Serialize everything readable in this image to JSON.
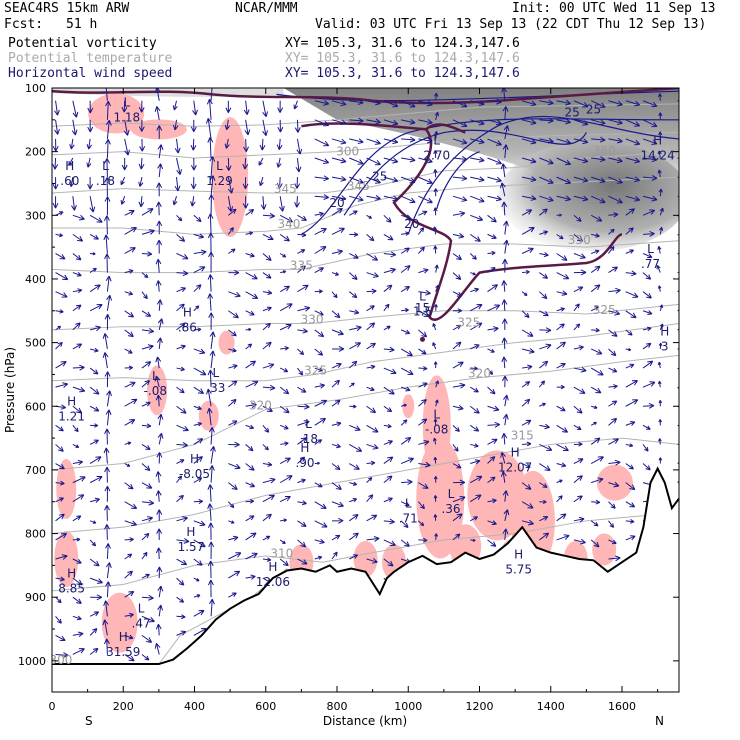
{
  "header": {
    "model": "SEAC4RS 15km ARW",
    "org": "NCAR/MMM",
    "init": "Init: 00 UTC Wed 11 Sep 13",
    "fcst_label": "Fcst:",
    "fcst_value": "51 h",
    "valid": "Valid: 03 UTC Fri 13 Sep 13 (22 CDT Thu 12 Sep 13)",
    "fields": [
      {
        "name": "Potential vorticity",
        "xy": "XY= 105.3, 31.6 to 124.3,147.6",
        "color": "#000000"
      },
      {
        "name": "Potential temperature",
        "xy": "XY= 105.3, 31.6 to 124.3,147.6",
        "color": "#aaaaaa"
      },
      {
        "name": "Horizontal wind speed",
        "xy": "XY= 105.3, 31.6 to 124.3,147.6",
        "color": "#1a1a6e"
      }
    ]
  },
  "chart_data": {
    "type": "cross-section",
    "xlabel": "Distance (km)",
    "ylabel": "Pressure (hPa)",
    "xlim": [
      0,
      1760
    ],
    "ylim": [
      100,
      1050
    ],
    "x_ticks": [
      "0",
      "200",
      "400",
      "600",
      "800",
      "1000",
      "1200",
      "1400",
      "1600"
    ],
    "y_ticks": [
      "100",
      "200",
      "300",
      "400",
      "500",
      "600",
      "700",
      "800",
      "900",
      "1000"
    ],
    "left_end_label": "S",
    "right_end_label": "N",
    "terrain_pressure_hPa": [
      [
        0,
        1005
      ],
      [
        60,
        1005
      ],
      [
        140,
        1005
      ],
      [
        220,
        1005
      ],
      [
        300,
        1005
      ],
      [
        340,
        998
      ],
      [
        380,
        980
      ],
      [
        420,
        960
      ],
      [
        460,
        935
      ],
      [
        500,
        918
      ],
      [
        540,
        905
      ],
      [
        580,
        895
      ],
      [
        620,
        870
      ],
      [
        660,
        858
      ],
      [
        700,
        855
      ],
      [
        740,
        860
      ],
      [
        780,
        850
      ],
      [
        800,
        860
      ],
      [
        840,
        855
      ],
      [
        880,
        860
      ],
      [
        920,
        895
      ],
      [
        940,
        870
      ],
      [
        960,
        860
      ],
      [
        1000,
        845
      ],
      [
        1040,
        835
      ],
      [
        1080,
        848
      ],
      [
        1120,
        845
      ],
      [
        1160,
        830
      ],
      [
        1200,
        840
      ],
      [
        1240,
        833
      ],
      [
        1280,
        815
      ],
      [
        1320,
        790
      ],
      [
        1360,
        822
      ],
      [
        1400,
        830
      ],
      [
        1440,
        835
      ],
      [
        1480,
        840
      ],
      [
        1520,
        842
      ],
      [
        1560,
        860
      ],
      [
        1600,
        845
      ],
      [
        1640,
        830
      ],
      [
        1660,
        790
      ],
      [
        1680,
        720
      ],
      [
        1700,
        698
      ],
      [
        1720,
        720
      ],
      [
        1740,
        760
      ],
      [
        1760,
        745
      ]
    ],
    "theta_contours_K": [
      {
        "label": "300",
        "label_x": 25,
        "label_p": 1005
      },
      {
        "label": "310",
        "label_x": 645,
        "label_p": 838
      },
      {
        "label": "315",
        "label_x": 1320,
        "label_p": 652
      },
      {
        "label": "320",
        "label_x": 585,
        "label_p": 605
      },
      {
        "label": "320",
        "label_x": 1200,
        "label_p": 555
      },
      {
        "label": "325",
        "label_x": 740,
        "label_p": 550
      },
      {
        "label": "325",
        "label_x": 1170,
        "label_p": 475
      },
      {
        "label": "325",
        "label_x": 1550,
        "label_p": 455
      },
      {
        "label": "330",
        "label_x": 730,
        "label_p": 470
      },
      {
        "label": "335",
        "label_x": 700,
        "label_p": 385
      },
      {
        "label": "340",
        "label_x": 665,
        "label_p": 320
      },
      {
        "label": "345",
        "label_x": 655,
        "label_p": 265
      },
      {
        "label": "345",
        "label_x": 860,
        "label_p": 260
      },
      {
        "label": "300",
        "label_x": 830,
        "label_p": 206
      },
      {
        "label": "330",
        "label_x": 1480,
        "label_p": 345
      },
      {
        "label": "360",
        "label_x": 1550,
        "label_p": 205
      }
    ],
    "wind_speed_labels": [
      {
        "label": "25",
        "label_x": 920,
        "label_p": 245
      },
      {
        "label": "20",
        "label_x": 800,
        "label_p": 287
      },
      {
        "label": "20",
        "label_x": 1010,
        "label_p": 320
      },
      {
        "label": "15",
        "label_x": 1040,
        "label_p": 452
      },
      {
        "label": "25",
        "label_x": 1460,
        "label_p": 145
      },
      {
        "label": "25",
        "label_x": 1520,
        "label_p": 140
      }
    ],
    "extrema": [
      {
        "kind": "L",
        "value": "1.18",
        "x": 210,
        "p": 140
      },
      {
        "kind": "H",
        "value": ".60",
        "x": 50,
        "p": 240
      },
      {
        "kind": "L",
        "value": ".18",
        "x": 150,
        "p": 240
      },
      {
        "kind": "L",
        "value": "1.29",
        "x": 470,
        "p": 240
      },
      {
        "kind": "L",
        "value": "2.70",
        "x": 1080,
        "p": 200
      },
      {
        "kind": "H",
        "value": "14.24",
        "x": 1700,
        "p": 200
      },
      {
        "kind": "L",
        "value": ".77",
        "x": 1680,
        "p": 370
      },
      {
        "kind": "L",
        "value": "1.5",
        "x": 1040,
        "p": 445
      },
      {
        "kind": "H",
        "value": ".86",
        "x": 380,
        "p": 470
      },
      {
        "kind": "H",
        "value": "3",
        "x": 1720,
        "p": 500
      },
      {
        "kind": "L",
        "value": "-.08",
        "x": 290,
        "p": 570
      },
      {
        "kind": "L",
        "value": ".33",
        "x": 460,
        "p": 565
      },
      {
        "kind": "H",
        "value": "1.21",
        "x": 55,
        "p": 610
      },
      {
        "kind": "L",
        "value": ".18",
        "x": 720,
        "p": 645
      },
      {
        "kind": "H",
        "value": ".90",
        "x": 710,
        "p": 683
      },
      {
        "kind": "L",
        "value": "-.08",
        "x": 1080,
        "p": 630
      },
      {
        "kind": "H",
        "value": "12.07",
        "x": 1300,
        "p": 690
      },
      {
        "kind": "H",
        "value": "-8.05",
        "x": 400,
        "p": 700
      },
      {
        "kind": "L",
        "value": ".36",
        "x": 1120,
        "p": 755
      },
      {
        "kind": "L",
        "value": ".71",
        "x": 1000,
        "p": 770
      },
      {
        "kind": "H",
        "value": "1.57",
        "x": 390,
        "p": 815
      },
      {
        "kind": "H",
        "value": "8.85",
        "x": 55,
        "p": 880
      },
      {
        "kind": "H",
        "value": "12.06",
        "x": 620,
        "p": 870
      },
      {
        "kind": "H",
        "value": "5.75",
        "x": 1310,
        "p": 850
      },
      {
        "kind": "L",
        "value": ".47",
        "x": 250,
        "p": 935
      },
      {
        "kind": "H",
        "value": "31.59",
        "x": 200,
        "p": 980
      }
    ],
    "colors": {
      "pv_contour": "#5a1a46",
      "theta_contour": "#b4b4b4",
      "wind_contour": "#1a1a8e",
      "wind_vector": "#1a1a8e",
      "negative_pv_fill": "#ffb6b6",
      "high_pv_shade": "#8a8a8a",
      "terrain": "#000000"
    }
  }
}
